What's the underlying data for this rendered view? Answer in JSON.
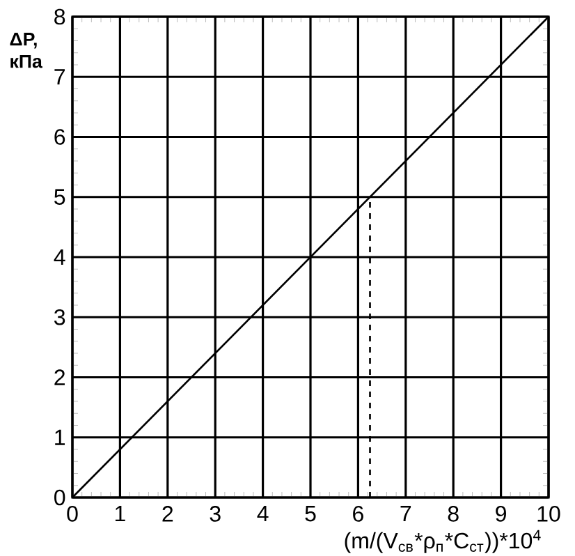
{
  "chart_data": {
    "type": "line",
    "xlabel": "(m/(V$_{св}$*ρ$_{п}$*C$_{ст}$))*10$^{4}$",
    "ylabel": "ΔP, кПа",
    "series": [
      {
        "color": "#000000",
        "x": [
          0,
          10
        ],
        "values": [
          0,
          8
        ],
        "line_style": "solid"
      },
      {
        "color": "#000000",
        "x": [
          6.25,
          6.25
        ],
        "values": [
          0,
          5
        ],
        "line_style": "dashed"
      }
    ],
    "xlim": [
      0,
      10
    ],
    "ylim": [
      0,
      8
    ],
    "xticks": [
      0,
      1,
      2,
      3,
      4,
      5,
      6,
      7,
      8,
      9,
      10
    ],
    "yticks": [
      0,
      1,
      2,
      3,
      4,
      5,
      6,
      7,
      8
    ],
    "grid": true
  }
}
